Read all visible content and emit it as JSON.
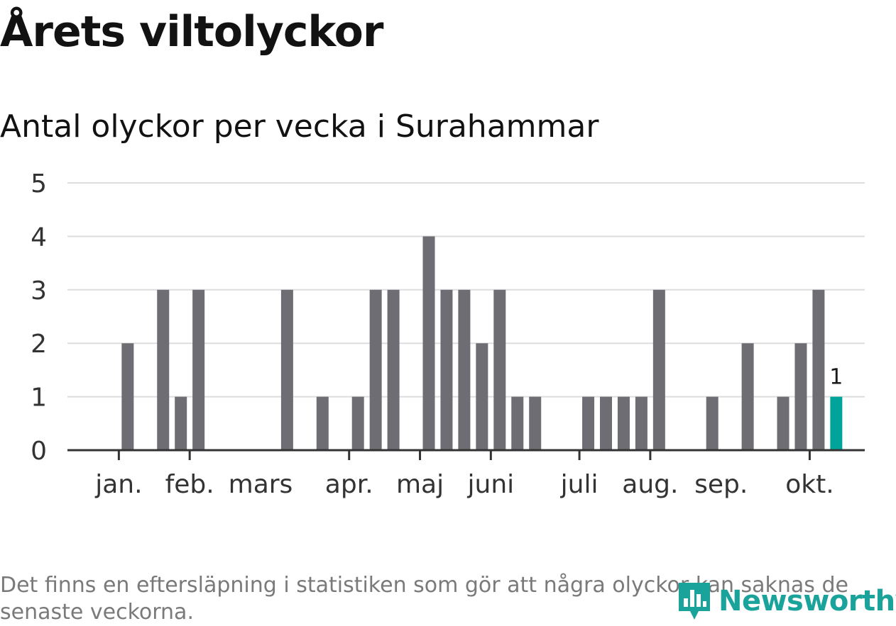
{
  "title": "Årets viltolyckor",
  "subtitle": "Antal olyckor per vecka i Surahammar",
  "footnote": "Det finns en eftersläpning i statistiken som gör att några olyckor kan saknas de senaste veckorna.",
  "brand": {
    "name": "Newsworthy",
    "color": "#1aa39a",
    "icon": "bar-chart-pin-icon"
  },
  "colors": {
    "bar": "#6e6d73",
    "highlight": "#00a49a",
    "grid": "#dddddd",
    "axis": "#333333",
    "text": "#333333"
  },
  "chart_data": {
    "type": "bar",
    "title": "Antal olyckor per vecka i Surahammar",
    "xlabel": "",
    "ylabel": "",
    "ylim": [
      0,
      5
    ],
    "yticks": [
      0,
      1,
      2,
      3,
      4,
      5
    ],
    "grid": true,
    "weeks": [
      1,
      2,
      3,
      4,
      5,
      6,
      7,
      8,
      9,
      10,
      11,
      12,
      13,
      14,
      15,
      16,
      17,
      18,
      19,
      20,
      21,
      22,
      23,
      24,
      25,
      26,
      27,
      28,
      29,
      30,
      31,
      32,
      33,
      34,
      35,
      36,
      37,
      38,
      39,
      40,
      41,
      42,
      43
    ],
    "values": [
      0,
      0,
      2,
      0,
      3,
      1,
      3,
      0,
      0,
      0,
      0,
      3,
      0,
      1,
      0,
      1,
      3,
      3,
      0,
      4,
      3,
      3,
      2,
      3,
      1,
      1,
      0,
      0,
      1,
      1,
      1,
      1,
      3,
      0,
      0,
      1,
      0,
      2,
      0,
      1,
      2,
      3,
      1
    ],
    "highlight_index": 42,
    "highlight_label": "1",
    "month_labels": [
      "jan.",
      "feb.",
      "mars",
      "apr.",
      "maj",
      "juni",
      "juli",
      "aug.",
      "sep.",
      "okt."
    ],
    "month_label_week": [
      2.5,
      6.5,
      10.5,
      15.5,
      19.5,
      23.5,
      28.5,
      32.5,
      36.5,
      41.5
    ],
    "month_tick_week": [
      2.5,
      6.5,
      15.5,
      19.5,
      23.5,
      28.5,
      32.5,
      41.5
    ]
  }
}
